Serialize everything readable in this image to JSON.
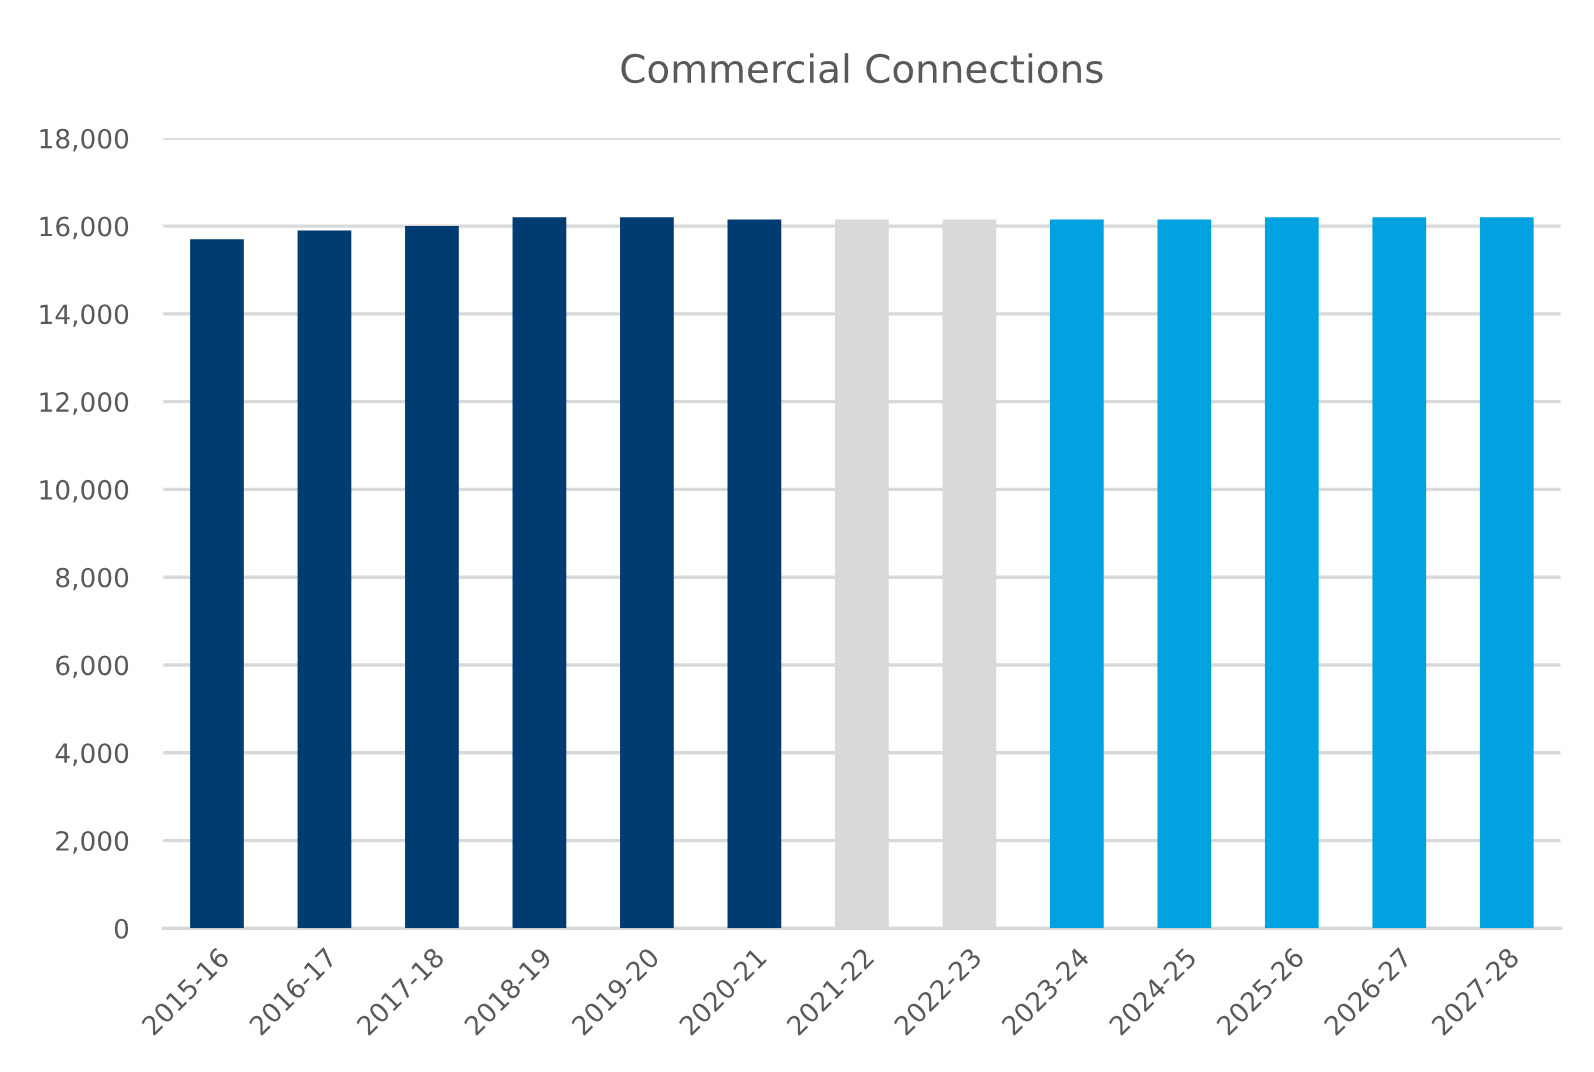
{
  "chart_data": {
    "type": "bar",
    "title": "Commercial Connections",
    "categories": [
      "2015-16",
      "2016-17",
      "2017-18",
      "2018-19",
      "2019-20",
      "2020-21",
      "2021-22",
      "2022-23",
      "2023-24",
      "2024-25",
      "2025-26",
      "2026-27",
      "2027-28"
    ],
    "values": [
      15700,
      15900,
      16000,
      16200,
      16200,
      16150,
      16150,
      16150,
      16150,
      16150,
      16200,
      16200,
      16200
    ],
    "colors": [
      "#003b71",
      "#003b71",
      "#003b71",
      "#003b71",
      "#003b71",
      "#003b71",
      "#d9d9d9",
      "#d9d9d9",
      "#00a3e0",
      "#00a3e0",
      "#00a3e0",
      "#00a3e0",
      "#00a3e0"
    ],
    "ylim": [
      0,
      18000
    ],
    "yticks": [
      0,
      {
        "value": 2000,
        "label": "2,000"
      },
      {
        "value": 4000,
        "label": "4,000"
      },
      {
        "value": 6000,
        "label": "6,000"
      },
      {
        "value": 8000,
        "label": "8,000"
      },
      {
        "value": 10000,
        "label": "10,000"
      },
      {
        "value": 12000,
        "label": "12,000"
      },
      {
        "value": 14000,
        "label": "14,000"
      },
      {
        "value": 16000,
        "label": "16,000"
      },
      {
        "value": 18000,
        "label": "18,000"
      }
    ],
    "grid": "y"
  }
}
